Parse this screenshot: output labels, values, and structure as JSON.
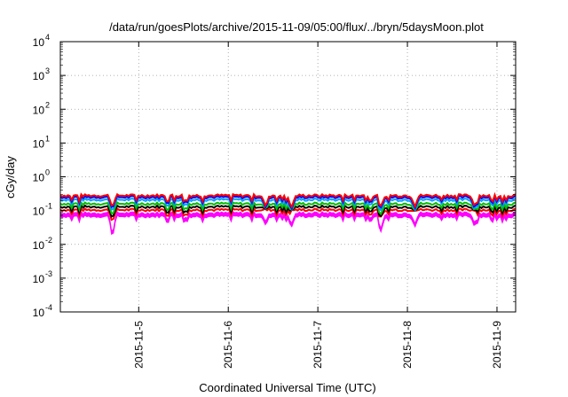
{
  "chart_data": {
    "type": "line",
    "title": "/data/run/goesPlots/archive/2015-11-09/05:00/flux/../bryn/5daysMoon.plot",
    "xlabel": "Coordinated Universal Time (UTC)",
    "ylabel": "cGy/day",
    "yscale": "log",
    "ylim": [
      0.0001,
      10000
    ],
    "xlim": [
      "2015-11-04T03:00",
      "2015-11-09T05:00"
    ],
    "grid": true,
    "legend": "none",
    "y_ticks": [
      {
        "base": "10",
        "exp": "-4",
        "value": 0.0001
      },
      {
        "base": "10",
        "exp": "-3",
        "value": 0.001
      },
      {
        "base": "10",
        "exp": "-2",
        "value": 0.01
      },
      {
        "base": "10",
        "exp": "-1",
        "value": 0.1
      },
      {
        "base": "10",
        "exp": "0",
        "value": 1
      },
      {
        "base": "10",
        "exp": "1",
        "value": 10
      },
      {
        "base": "10",
        "exp": "2",
        "value": 100
      },
      {
        "base": "10",
        "exp": "3",
        "value": 1000
      },
      {
        "base": "10",
        "exp": "4",
        "value": 10000
      }
    ],
    "x_ticks": [
      {
        "label": "2015-11-5",
        "value": "2015-11-05T00:00"
      },
      {
        "label": "2015-11-6",
        "value": "2015-11-06T00:00"
      },
      {
        "label": "2015-11-7",
        "value": "2015-11-07T00:00"
      },
      {
        "label": "2015-11-8",
        "value": "2015-11-08T00:00"
      },
      {
        "label": "2015-11-9",
        "value": "2015-11-09T00:00"
      }
    ],
    "series": [
      {
        "color": "#ff00ff",
        "level": 0.085,
        "fill": true
      },
      {
        "color": "#ff0000",
        "level": 0.105
      },
      {
        "color": "#000000",
        "level": 0.13
      },
      {
        "color": "#00c000",
        "level": 0.16
      },
      {
        "color": "#00a0ff",
        "level": 0.21
      },
      {
        "color": "#0000ff",
        "level": 0.25
      },
      {
        "color": "#ff0000",
        "level": 0.28
      }
    ],
    "dips": [
      {
        "t": "2015-11-04T17:00",
        "min": 0.015
      },
      {
        "t": "2015-11-06T10:00",
        "min": 0.045
      },
      {
        "t": "2015-11-06T17:00",
        "min": 0.042
      },
      {
        "t": "2015-11-07T17:00",
        "min": 0.025
      },
      {
        "t": "2015-11-08T02:00",
        "min": 0.04
      },
      {
        "t": "2015-11-08T18:00",
        "min": 0.04
      }
    ]
  }
}
